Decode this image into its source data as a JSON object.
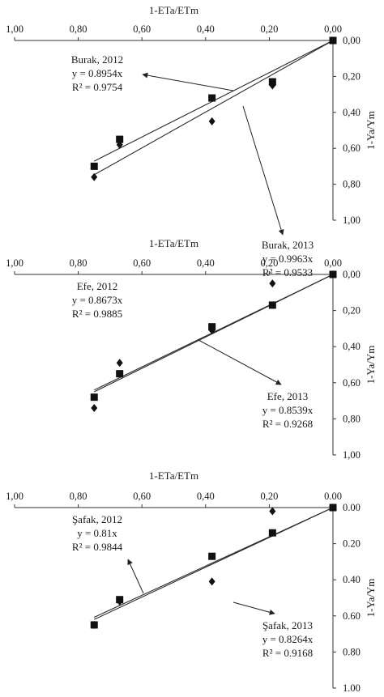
{
  "chart_data": [
    {
      "type": "scatter",
      "xlabel": "1-ETa/ETm",
      "ylabel": "1-Ya/Ym",
      "xlim": [
        1.0,
        0.0
      ],
      "ylim": [
        0.0,
        1.0
      ],
      "x_reversed": true,
      "y_reversed": true,
      "x_ticks": [
        "1,00",
        "0,80",
        "0,60",
        "0,40",
        "0,20",
        "0,00"
      ],
      "y_ticks": [
        "0,00",
        "0,20",
        "0,40",
        "0,60",
        "0,80",
        "1,00"
      ],
      "series": [
        {
          "name": "Burak, 2012",
          "marker": "diamond",
          "x": [
            0.75,
            0.67,
            0.38,
            0.19,
            0.0
          ],
          "y": [
            0.76,
            0.58,
            0.45,
            0.25,
            0.0
          ],
          "slope": 0.8954
        },
        {
          "name": "Burak, 2013",
          "marker": "square",
          "x": [
            0.75,
            0.67,
            0.38,
            0.19,
            0.0
          ],
          "y": [
            0.7,
            0.55,
            0.32,
            0.23,
            0.0
          ],
          "slope": 0.9963
        }
      ],
      "annotations": [
        {
          "name": "Burak, 2012",
          "equation": "y = 0.8954x",
          "r2": "R² = 0.9754"
        },
        {
          "name": "Burak, 2013",
          "equation": "y = 0.9963x",
          "r2": "R² = 0.9533"
        }
      ]
    },
    {
      "type": "scatter",
      "xlabel": "1-ETa/ETm",
      "ylabel": "1-Ya/Ym",
      "xlim": [
        1.0,
        0.0
      ],
      "ylim": [
        0.0,
        1.0
      ],
      "x_reversed": true,
      "y_reversed": true,
      "x_ticks": [
        "1,00",
        "0,80",
        "0,60",
        "0,40",
        "0,20",
        "0,00"
      ],
      "y_ticks": [
        "0,00",
        "0,20",
        "0,40",
        "0,60",
        "0,80",
        "1,00"
      ],
      "series": [
        {
          "name": "Efe, 2012",
          "marker": "diamond",
          "x": [
            0.75,
            0.67,
            0.38,
            0.19,
            0.0
          ],
          "y": [
            0.74,
            0.49,
            0.31,
            0.05,
            0.0
          ],
          "slope": 0.8673
        },
        {
          "name": "Efe, 2013",
          "marker": "square",
          "x": [
            0.75,
            0.67,
            0.38,
            0.19,
            0.0
          ],
          "y": [
            0.68,
            0.55,
            0.29,
            0.17,
            0.0
          ],
          "slope": 0.8539
        }
      ],
      "annotations": [
        {
          "name": "Efe, 2012",
          "equation": "y = 0.8673x",
          "r2": "R² = 0.9885"
        },
        {
          "name": "Efe, 2013",
          "equation": "y = 0.8539x",
          "r2": "R² = 0.9268"
        }
      ]
    },
    {
      "type": "scatter",
      "xlabel": "1-ETa/ETm",
      "ylabel": "1-Ya/Ym",
      "xlim": [
        1.0,
        0.0
      ],
      "ylim": [
        0.0,
        1.0
      ],
      "x_reversed": true,
      "y_reversed": true,
      "x_ticks": [
        "1,00",
        "0,80",
        "0,60",
        "0,40",
        "0,20",
        "0.00"
      ],
      "y_ticks": [
        "0.00",
        "0.20",
        "0.40",
        "0.60",
        "0.80",
        "1.00"
      ],
      "series": [
        {
          "name": "Şafak, 2012",
          "marker": "diamond",
          "x": [
            0.75,
            0.67,
            0.38,
            0.19,
            0.0
          ],
          "y": [
            0.65,
            0.52,
            0.41,
            0.02,
            0.0
          ],
          "slope": 0.81
        },
        {
          "name": "Şafak, 2013",
          "marker": "square",
          "x": [
            0.75,
            0.67,
            0.38,
            0.19,
            0.0
          ],
          "y": [
            0.65,
            0.51,
            0.27,
            0.14,
            0.0
          ],
          "slope": 0.8264
        }
      ],
      "annotations": [
        {
          "name": "Şafak, 2012",
          "equation": "y = 0.81x",
          "r2": "R² = 0.9844"
        },
        {
          "name": "Şafak, 2013",
          "equation": "y = 0.8264x",
          "r2": "R² = 0.9168"
        }
      ]
    }
  ]
}
